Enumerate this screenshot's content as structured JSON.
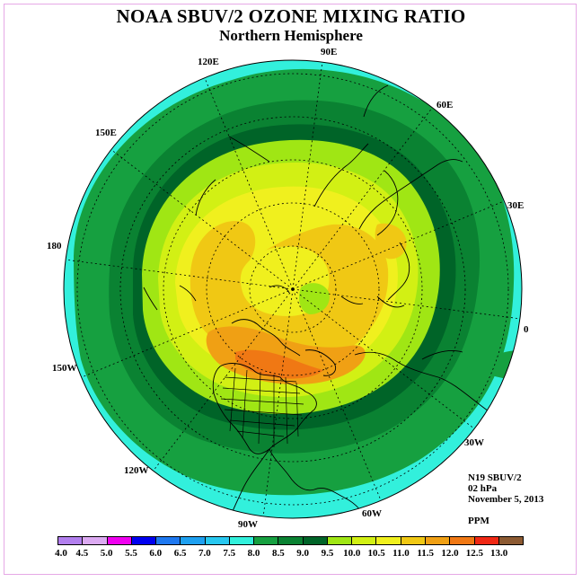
{
  "title": "NOAA SBUV/2 OZONE MIXING RATIO",
  "subtitle": "Northern Hemisphere",
  "longitude_labels": {
    "e90": "90E",
    "e60": "60E",
    "e30": "30E",
    "zero": "0",
    "w30": "30W",
    "w60": "60W",
    "w90": "90W",
    "w120": "120W",
    "w150": "150W",
    "lon180": "180",
    "e150": "150E",
    "e120": "120E"
  },
  "info": {
    "instrument": "N19 SBUV/2",
    "level": "02 hPa",
    "date": "November 5, 2013",
    "units": "PPM"
  },
  "colorbar": {
    "colors": [
      "#b27fee",
      "#dcaaf2",
      "#f000f0",
      "#0000f0",
      "#1e78f0",
      "#1ea0f0",
      "#28c8f0",
      "#32f0dc",
      "#16a040",
      "#0a8232",
      "#006428",
      "#a0e614",
      "#d2f014",
      "#f0f01e",
      "#f0c814",
      "#f0a014",
      "#f07814",
      "#f02814",
      "#8c5a32"
    ],
    "tick_labels": [
      "4.0",
      "4.5",
      "5.0",
      "5.5",
      "6.0",
      "6.5",
      "7.0",
      "7.5",
      "8.0",
      "8.5",
      "9.0",
      "9.5",
      "10.0",
      "10.5",
      "11.0",
      "11.5",
      "12.0",
      "12.5",
      "13.0"
    ]
  }
}
